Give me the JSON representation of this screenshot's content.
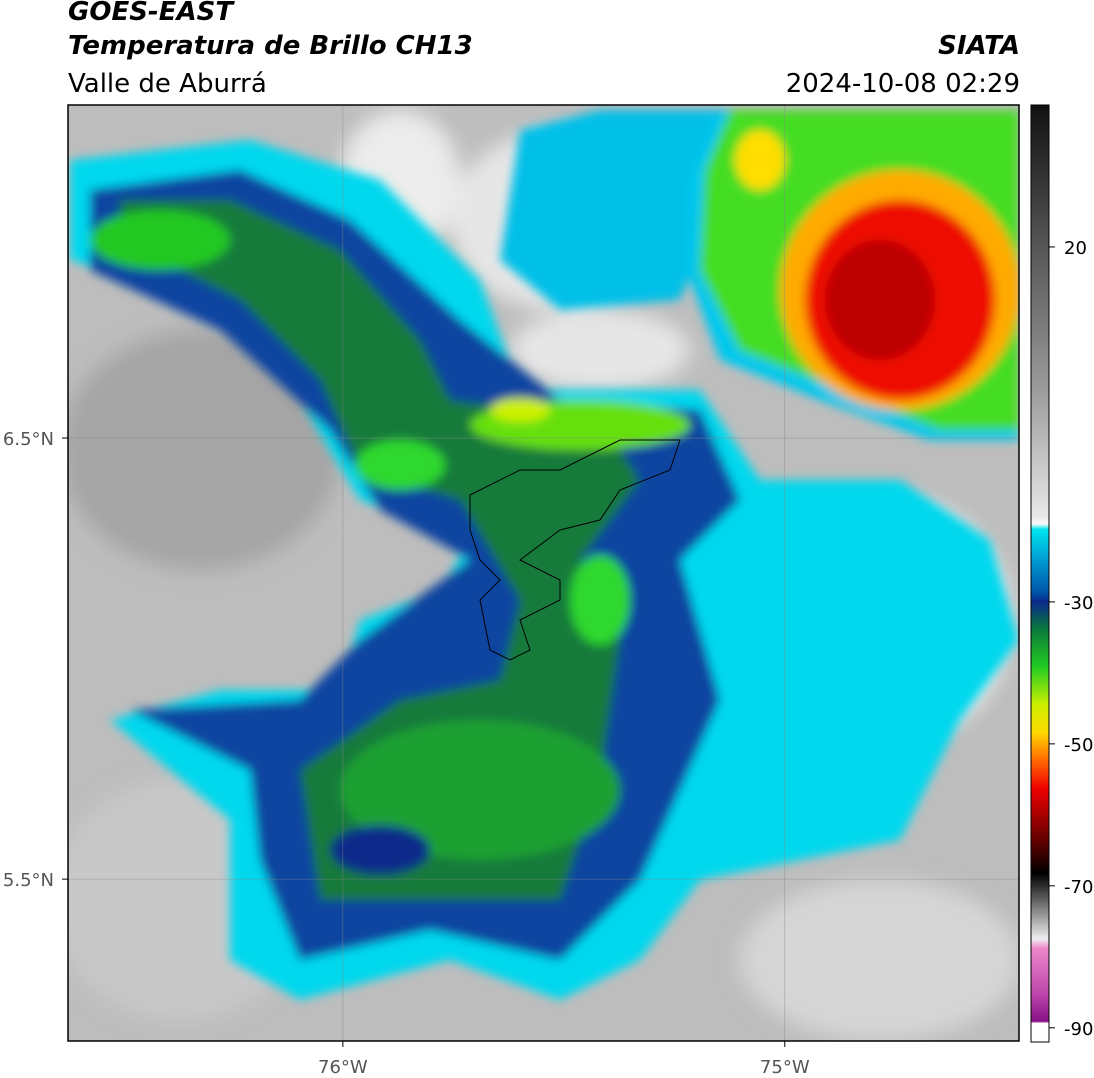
{
  "header": {
    "satellite": "GOES-EAST",
    "product": "Temperatura de Brillo CH13",
    "region": "Valle de Aburrá",
    "institution": "SIATA",
    "timestamp": "2024-10-08 02:29"
  },
  "map": {
    "xlim": [
      -76.622,
      -74.47
    ],
    "ylim": [
      5.133,
      7.255
    ],
    "xticks": [
      {
        "value": -76,
        "label": "76°W"
      },
      {
        "value": -75,
        "label": "75°W"
      }
    ],
    "yticks": [
      {
        "value": 6.5,
        "label": "6.5°N"
      },
      {
        "value": 5.5,
        "label": "5.5°N"
      }
    ],
    "grid": true
  },
  "colorbar": {
    "lim": [
      -92,
      40
    ],
    "ticks": [
      20,
      -30,
      -50,
      -70,
      -90
    ]
  }
}
